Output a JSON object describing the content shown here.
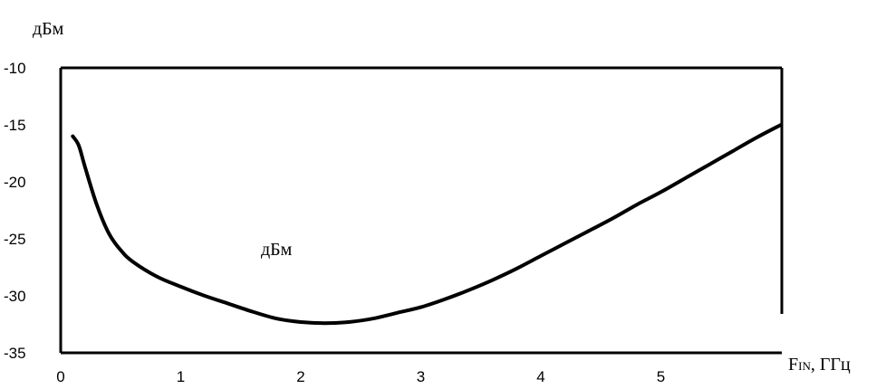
{
  "chart_data": {
    "type": "line",
    "ylabel": "дБм",
    "xlabel_main": "F",
    "xlabel_sub": "IN",
    "xlabel_rest": ", ГГц",
    "series_label": "дБм",
    "xlim": [
      0,
      6
    ],
    "ylim": [
      -35,
      -10
    ],
    "x_ticks": [
      0,
      1,
      2,
      3,
      4,
      5
    ],
    "y_ticks": [
      -10,
      -15,
      -20,
      -25,
      -30,
      -35
    ],
    "grid": false,
    "series": [
      {
        "x": [
          0.1,
          0.15,
          0.2,
          0.3,
          0.4,
          0.5,
          0.6,
          0.8,
          1.0,
          1.2,
          1.4,
          1.6,
          1.8,
          2.0,
          2.2,
          2.4,
          2.6,
          2.8,
          3.0,
          3.2,
          3.4,
          3.6,
          3.8,
          4.0,
          4.2,
          4.4,
          4.6,
          4.8,
          5.0,
          5.2,
          5.4,
          5.6,
          5.8,
          6.0
        ],
        "y": [
          -16.0,
          -16.8,
          -18.6,
          -22.0,
          -24.5,
          -26.0,
          -27.0,
          -28.3,
          -29.2,
          -30.0,
          -30.7,
          -31.4,
          -32.0,
          -32.3,
          -32.4,
          -32.3,
          -32.0,
          -31.5,
          -31.0,
          -30.3,
          -29.5,
          -28.6,
          -27.6,
          -26.5,
          -25.4,
          -24.3,
          -23.2,
          -22.0,
          -20.9,
          -19.7,
          -18.5,
          -17.3,
          -16.1,
          -15.0
        ]
      }
    ]
  }
}
